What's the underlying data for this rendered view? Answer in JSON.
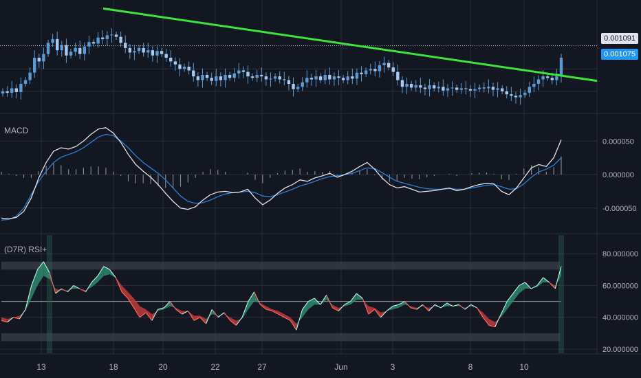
{
  "panes": {
    "macd_title": "MACD",
    "rsi_title": "(D7R) RSI+"
  },
  "price_tags": {
    "last": "0.001091",
    "close": "0.001075"
  },
  "colors": {
    "background": "#131722",
    "grid": "#2a2e39",
    "candle": "#5b9bd5",
    "trendline": "#3ce63c",
    "macd_line": "#e0e3eb",
    "signal_line": "#2e7fd6",
    "histogram": "#b2b5be",
    "rsi_up_fill": "#2d8a6e",
    "rsi_down_fill": "#c33a3a",
    "band": "#3a3f4c"
  },
  "chart_data": [
    {
      "type": "candlestick",
      "title": "",
      "x_tick_labels": [
        "13",
        "18",
        "20",
        "22",
        "27",
        "Jun",
        "3",
        "8",
        "10"
      ],
      "series": [
        {
          "close": [
            0.00103,
            0.001028,
            0.001034,
            0.001029,
            0.00104,
            0.001045,
            0.001055,
            0.001075,
            0.00107,
            0.00108,
            0.001095,
            0.0011,
            0.001085,
            0.001092,
            0.001078,
            0.001083,
            0.001088,
            0.00108,
            0.00109,
            0.001096,
            0.001094,
            0.001102,
            0.0011,
            0.001105,
            0.001106,
            0.001103,
            0.001095,
            0.001088,
            0.001082,
            0.001084,
            0.001088,
            0.001082,
            0.001085,
            0.001078,
            0.001084,
            0.00108,
            0.001075,
            0.00107,
            0.001066,
            0.00106,
            0.001063,
            0.001058,
            0.00105,
            0.001045,
            0.001052,
            0.001048,
            0.001044,
            0.00105,
            0.001045,
            0.001052,
            0.001048,
            0.001054,
            0.001058,
            0.001056,
            0.00105,
            0.001048,
            0.001052,
            0.00105,
            0.001046,
            0.001047,
            0.00105,
            0.001046,
            0.001045,
            0.00104,
            0.001033,
            0.001036,
            0.001042,
            0.001048,
            0.001046,
            0.00105,
            0.001045,
            0.001052,
            0.001046,
            0.00105,
            0.001048,
            0.001045,
            0.00105,
            0.001047,
            0.001055,
            0.001053,
            0.001058,
            0.00106,
            0.001057,
            0.001065,
            0.001068,
            0.001062,
            0.001056,
            0.001045,
            0.001036,
            0.00104,
            0.001035,
            0.001038,
            0.001035,
            0.001033,
            0.001038,
            0.001034,
            0.001036,
            0.001031,
            0.001034,
            0.001035,
            0.001032,
            0.001034,
            0.001033,
            0.001031,
            0.001033,
            0.001035,
            0.001034,
            0.001036,
            0.001032,
            0.001034,
            0.00103,
            0.001026,
            0.001024,
            0.001022,
            0.001025,
            0.001028,
            0.001036,
            0.00104,
            0.001046,
            0.00105,
            0.001048,
            0.001045,
            0.00105,
            0.001075
          ],
          "label": "price"
        }
      ],
      "price_labels": [
        "0.001091",
        "0.001075"
      ],
      "trendline": {
        "start": 0.001141,
        "end": 0.001044
      }
    },
    {
      "type": "line",
      "title": "MACD",
      "y_tick_labels": [
        "0.000050",
        "0.000000",
        "-0.000050"
      ],
      "ylim": [
        -8e-05,
        8e-05
      ],
      "series": [
        {
          "name": "",
          "values": [
            -6.5e-05,
            -6.6e-05,
            -6.4e-05,
            -5.5e-05,
            -3.5e-05,
            -5e-06,
            1.8e-05,
            3.5e-05,
            4e-05,
            3.8e-05,
            4.2e-05,
            5e-05,
            6e-05,
            6.8e-05,
            7e-05,
            6.2e-05,
            4.8e-05,
            3e-05,
            1.5e-05,
            5e-06,
            -4e-06,
            -1.5e-05,
            -2.8e-05,
            -4e-05,
            -5e-05,
            -5.2e-05,
            -4.8e-05,
            -3.8e-05,
            -3e-05,
            -2.6e-05,
            -2.5e-05,
            -2.7e-05,
            -2.6e-05,
            -2.2e-05,
            -3.5e-05,
            -4.5e-05,
            -3.8e-05,
            -2.8e-05,
            -2e-05,
            -1.5e-05,
            -8e-06,
            -1e-05,
            -5e-06,
            -2e-06,
            2e-06,
            -4e-06,
            0.0,
            5e-06,
            1.2e-05,
            1.8e-05,
            8e-06,
            -5e-06,
            -1.5e-05,
            -2e-05,
            -1.8e-05,
            -2.2e-05,
            -2.6e-05,
            -2.5e-05,
            -2.4e-05,
            -2.2e-05,
            -2e-05,
            -2.4e-05,
            -2.2e-05,
            -1.8e-05,
            -1.5e-05,
            -1.3e-05,
            -1.4e-05,
            -2.5e-05,
            -3e-05,
            -2e-05,
            -5e-06,
            1e-05,
            1.5e-05,
            1.2e-05,
            2.5e-05,
            5.2e-05
          ]
        },
        {
          "name": "",
          "values": [
            -6.8e-05,
            -6.7e-05,
            -6.2e-05,
            -5e-05,
            -3e-05,
            -1e-05,
            5e-06,
            1.8e-05,
            2.6e-05,
            3e-05,
            3.4e-05,
            4e-05,
            4.8e-05,
            5.6e-05,
            6e-05,
            5.8e-05,
            5e-05,
            4e-05,
            2.8e-05,
            1.8e-05,
            1e-05,
            2e-06,
            -8e-06,
            -2e-05,
            -3.2e-05,
            -4e-05,
            -4.3e-05,
            -4.2e-05,
            -3.8e-05,
            -3.3e-05,
            -2.9e-05,
            -2.7e-05,
            -2.6e-05,
            -2.5e-05,
            -2.7e-05,
            -3.2e-05,
            -3.3e-05,
            -3e-05,
            -2.6e-05,
            -2.2e-05,
            -1.7e-05,
            -1.4e-05,
            -1e-05,
            -6e-06,
            -3e-06,
            -2e-06,
            0.0,
            2e-06,
            6e-06,
            1e-05,
            9e-06,
            3e-06,
            -4e-06,
            -1e-05,
            -1.3e-05,
            -1.6e-05,
            -1.9e-05,
            -2.1e-05,
            -2.2e-05,
            -2.2e-05,
            -2.1e-05,
            -2.2e-05,
            -2.2e-05,
            -2e-05,
            -1.8e-05,
            -1.6e-05,
            -1.5e-05,
            -1.8e-05,
            -2.2e-05,
            -2.1e-05,
            -1.4e-05,
            -4e-06,
            4e-06,
            8e-06,
            1.4e-05,
            2.5e-05
          ]
        }
      ],
      "histogram": [
        4e-06,
        1e-06,
        -2e-06,
        -5e-06,
        -5e-06,
        5e-06,
        1.3e-05,
        1.7e-05,
        1.4e-05,
        8e-06,
        8e-06,
        1e-05,
        1.2e-05,
        1.2e-05,
        1e-05,
        4e-06,
        -2e-06,
        -1e-05,
        -1.3e-05,
        -1.3e-05,
        -1.4e-05,
        -1.7e-05,
        -2e-05,
        -2e-05,
        -1.8e-05,
        -1.2e-05,
        -5e-06,
        4e-06,
        8e-06,
        7e-06,
        4e-06,
        0.0,
        0.0,
        3e-06,
        -8e-06,
        -1.3e-05,
        -5e-06,
        2e-06,
        6e-06,
        7e-06,
        9e-06,
        4e-06,
        5e-06,
        4e-06,
        5e-06,
        -2e-06,
        0.0,
        3e-06,
        6e-06,
        8e-06,
        -1e-06,
        -8e-06,
        -1.1e-05,
        -1e-05,
        -5e-06,
        -6e-06,
        -7e-06,
        -4e-06,
        -2e-06,
        0.0,
        1e-06,
        -2e-06,
        0.0,
        2e-06,
        3e-06,
        3e-06,
        1e-06,
        -7e-06,
        -8e-06,
        1e-06,
        9e-06,
        1.4e-05,
        1.1e-05,
        4e-06,
        1.1e-05,
        2.7e-05
      ]
    },
    {
      "type": "line",
      "title": "(D7R) RSI+",
      "y_tick_labels": [
        "80.000000",
        "60.000000",
        "40.000000",
        "20.000000"
      ],
      "ylim": [
        20,
        90
      ],
      "bands": [
        [
          70,
          75
        ],
        [
          25,
          30
        ]
      ],
      "midline": 50,
      "series": [
        {
          "name": "",
          "values": [
            38,
            37,
            40,
            39,
            45,
            60,
            70,
            75,
            68,
            55,
            58,
            56,
            60,
            58,
            56,
            62,
            66,
            72,
            70,
            65,
            56,
            52,
            46,
            40,
            43,
            38,
            45,
            46,
            50,
            45,
            42,
            44,
            38,
            40,
            36,
            45,
            40,
            43,
            38,
            35,
            40,
            50,
            56,
            48,
            45,
            44,
            42,
            40,
            38,
            32,
            45,
            50,
            52,
            48,
            54,
            46,
            44,
            48,
            50,
            55,
            52,
            42,
            45,
            40,
            44,
            47,
            48,
            50,
            46,
            45,
            48,
            44,
            48,
            46,
            49,
            47,
            48,
            45,
            48,
            46,
            40,
            35,
            34,
            42,
            50,
            55,
            60,
            62,
            58,
            60,
            65,
            62,
            58,
            72
          ]
        },
        {
          "name": "",
          "values": [
            40,
            39,
            40,
            41,
            44,
            52,
            60,
            66,
            64,
            58,
            57,
            57,
            58,
            58,
            57,
            59,
            62,
            66,
            67,
            65,
            60,
            56,
            52,
            47,
            45,
            42,
            44,
            45,
            47,
            46,
            44,
            44,
            41,
            41,
            39,
            42,
            41,
            42,
            40,
            38,
            39,
            45,
            50,
            49,
            47,
            45,
            44,
            42,
            40,
            36,
            40,
            45,
            48,
            48,
            51,
            48,
            46,
            47,
            48,
            51,
            51,
            47,
            46,
            43,
            44,
            45,
            46,
            48,
            47,
            46,
            47,
            46,
            47,
            46,
            47,
            47,
            47,
            46,
            47,
            46,
            43,
            39,
            37,
            40,
            45,
            50,
            55,
            58,
            58,
            59,
            62,
            62,
            60,
            66
          ]
        }
      ]
    }
  ]
}
